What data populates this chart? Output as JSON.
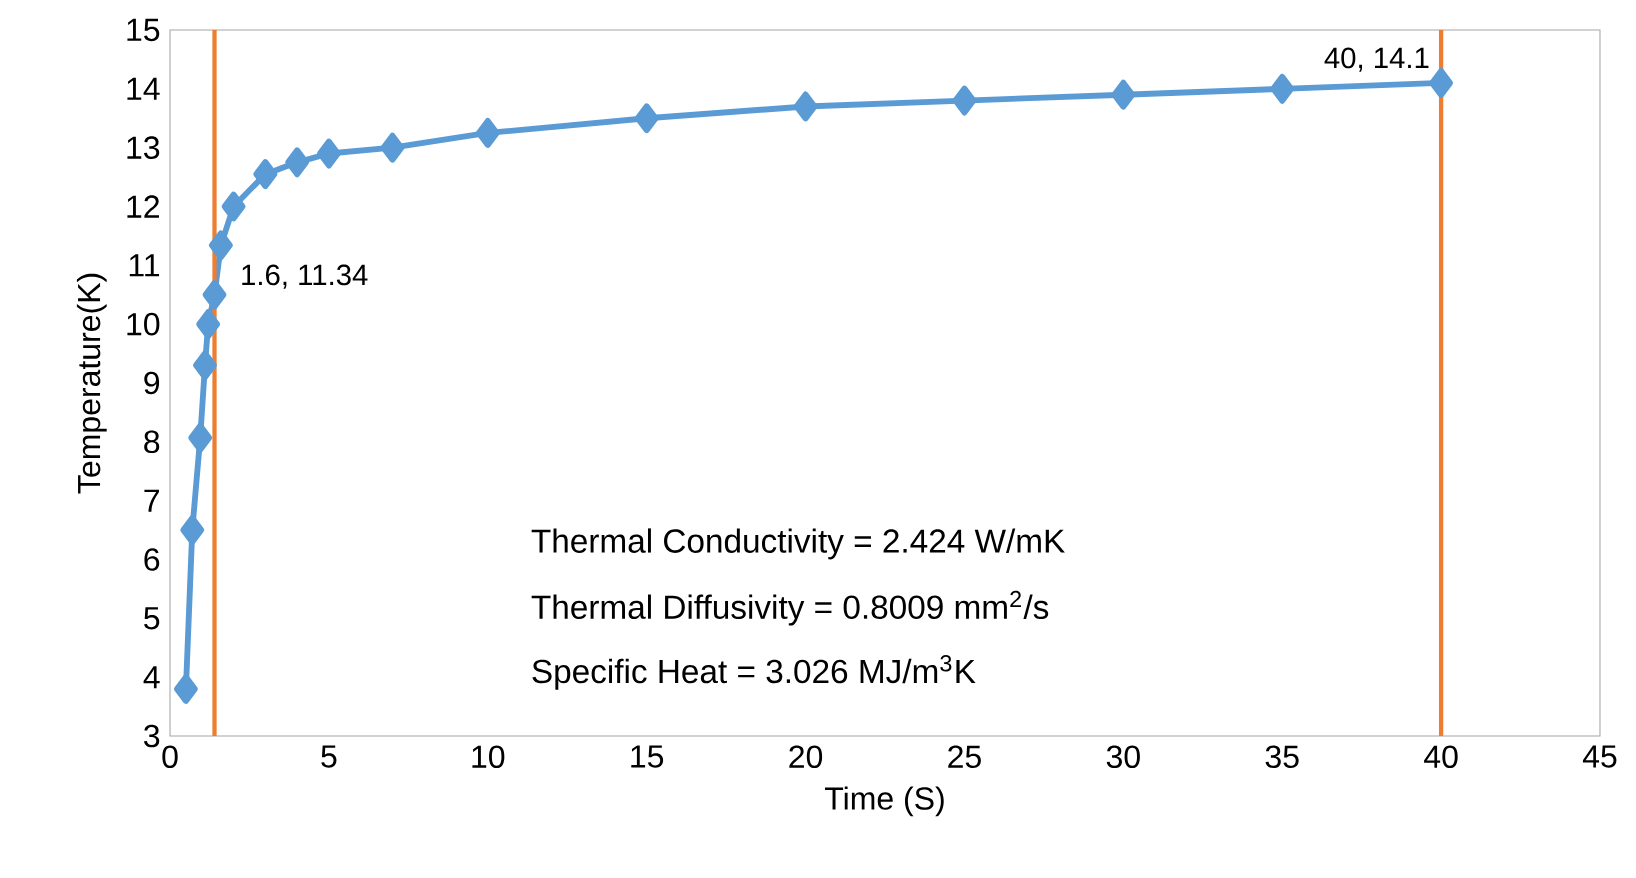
{
  "chart_data": {
    "type": "line",
    "xlabel": "Time (S)",
    "ylabel": "Temperature(K)",
    "x": [
      0.5,
      0.7,
      0.95,
      1.1,
      1.2,
      1.4,
      1.6,
      2,
      3,
      4,
      5,
      7,
      10,
      15,
      20,
      25,
      30,
      35,
      40
    ],
    "series": [
      {
        "color": "#5b9bd5",
        "values": [
          3.8,
          6.5,
          8.07,
          9.3,
          10.0,
          10.5,
          11.34,
          12.0,
          12.55,
          12.75,
          12.9,
          13.0,
          13.25,
          13.5,
          13.7,
          13.8,
          13.9,
          14.0,
          14.1
        ]
      }
    ],
    "xlim": [
      0,
      45
    ],
    "xticks": [
      0,
      5,
      10,
      15,
      20,
      25,
      30,
      35,
      40,
      45
    ],
    "ylim": [
      3,
      15
    ],
    "yticks": [
      3,
      4,
      5,
      6,
      7,
      8,
      9,
      10,
      11,
      12,
      13,
      14,
      15
    ],
    "ref_lines": [
      {
        "axis": "x",
        "value": 1.4,
        "color": "#ed7d31"
      },
      {
        "axis": "x",
        "value": 40,
        "color": "#ed7d31"
      }
    ],
    "annotations": [
      {
        "text": "1.6, 11.34",
        "x": 1.6,
        "y": 11.34
      },
      {
        "text": "40, 14.1",
        "x": 40,
        "y": 14.1
      },
      "Thermal Conductivity = 2.424  W/mK",
      "Thermal Diffusivity =  0.8009 mm$^{2}$/s",
      "Specific Heat = 3.026 MJ/m$^{3}$K"
    ],
    "grid": false,
    "legend": false,
    "marker": "diamond",
    "line_style": "solid"
  }
}
